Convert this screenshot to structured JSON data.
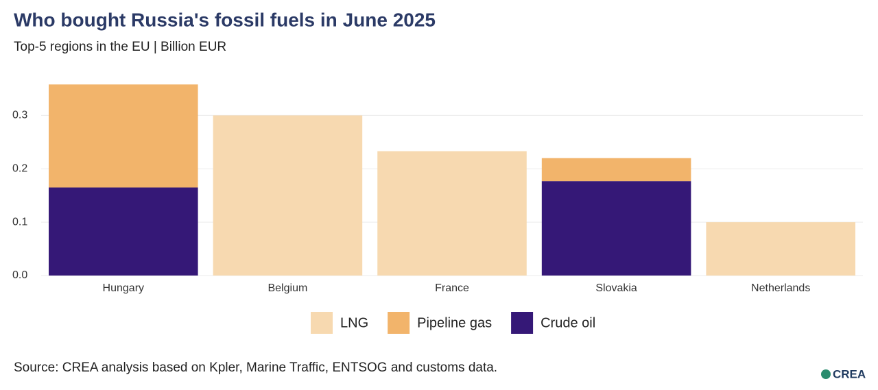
{
  "chart_data": {
    "type": "stacked_bar",
    "title": "Who bought Russia's fossil fuels in June 2025",
    "subtitle": "Top-5 regions in the EU | Billion EUR",
    "categories": [
      "Hungary",
      "Belgium",
      "France",
      "Slovakia",
      "Netherlands"
    ],
    "series": [
      {
        "name": "Crude oil",
        "color": "#351877",
        "values": [
          0.165,
          0,
          0,
          0.177,
          0
        ]
      },
      {
        "name": "Pipeline gas",
        "color": "#f2b46b",
        "values": [
          0.193,
          0,
          0,
          0.043,
          0
        ]
      },
      {
        "name": "LNG",
        "color": "#f7d9b0",
        "values": [
          0,
          0.3,
          0.233,
          0,
          0.1
        ]
      }
    ],
    "legend_order": [
      "LNG",
      "Pipeline gas",
      "Crude oil"
    ],
    "ylim": [
      0,
      0.375
    ],
    "yticks": [
      {
        "value": 0,
        "label": "0.0"
      },
      0.1,
      0.2,
      0.3
    ],
    "grid": true,
    "source": "Source: CREA analysis based on Kpler, Marine Traffic, ENTSOG and customs data.",
    "logo": "CREA"
  }
}
